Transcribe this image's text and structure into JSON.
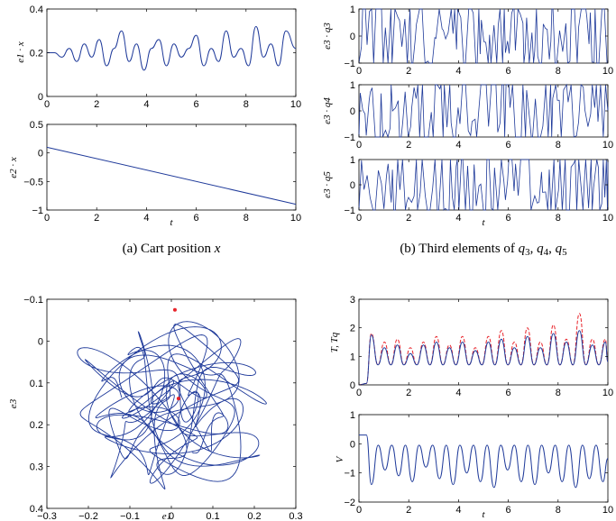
{
  "colors": {
    "series": "#1f3a9a",
    "secondary": "#e8232a",
    "axis": "#000000"
  },
  "captions": {
    "a": "(a) Cart position x",
    "b": "(b) Third elements of q3, q4, q5"
  },
  "chart_data": [
    {
      "id": "a1",
      "type": "line",
      "ylabel": "e1 · x",
      "xlabel": "",
      "xlim": [
        0,
        10
      ],
      "ylim": [
        0,
        0.4
      ],
      "xticks": [
        "0",
        "2",
        "4",
        "6",
        "8",
        "10"
      ],
      "yticks": [
        "0",
        "0.2",
        "0.4"
      ],
      "series": [
        {
          "x": [
            0,
            0.3,
            0.6,
            0.9,
            1.2,
            1.5,
            1.8,
            2.1,
            2.4,
            2.7,
            3.0,
            3.3,
            3.6,
            3.9,
            4.2,
            4.5,
            4.8,
            5.1,
            5.4,
            5.7,
            6.0,
            6.3,
            6.6,
            6.9,
            7.2,
            7.5,
            7.8,
            8.1,
            8.4,
            8.7,
            9.0,
            9.3,
            9.6,
            10
          ],
          "y": [
            0.2,
            0.2,
            0.18,
            0.22,
            0.16,
            0.24,
            0.18,
            0.26,
            0.14,
            0.22,
            0.3,
            0.16,
            0.24,
            0.12,
            0.22,
            0.26,
            0.14,
            0.24,
            0.18,
            0.22,
            0.28,
            0.14,
            0.22,
            0.16,
            0.3,
            0.18,
            0.22,
            0.14,
            0.32,
            0.18,
            0.24,
            0.14,
            0.3,
            0.22
          ]
        }
      ]
    },
    {
      "id": "a2",
      "type": "line",
      "ylabel": "e2 · x",
      "xlabel": "t",
      "xlim": [
        0,
        10
      ],
      "ylim": [
        -1,
        0.5
      ],
      "xticks": [
        "0",
        "2",
        "4",
        "6",
        "8",
        "10"
      ],
      "yticks": [
        "−1",
        "−0.5",
        "0",
        "0.5"
      ],
      "series": [
        {
          "x": [
            0,
            10
          ],
          "y": [
            0.1,
            -0.9
          ]
        }
      ]
    },
    {
      "id": "b1",
      "type": "line",
      "ylabel": "e3 · q3",
      "xlabel": "",
      "xlim": [
        0,
        10
      ],
      "ylim": [
        -1,
        1
      ],
      "xticks": [
        "0",
        "2",
        "4",
        "6",
        "8",
        "10"
      ],
      "yticks": [
        "−1",
        "0",
        "1"
      ]
    },
    {
      "id": "b2",
      "type": "line",
      "ylabel": "e3 · q4",
      "xlabel": "",
      "xlim": [
        0,
        10
      ],
      "ylim": [
        -1,
        1
      ],
      "xticks": [
        "0",
        "2",
        "4",
        "6",
        "8",
        "10"
      ],
      "yticks": [
        "−1",
        "0",
        "1"
      ]
    },
    {
      "id": "b3",
      "type": "line",
      "ylabel": "e3 · q5",
      "xlabel": "t",
      "xlim": [
        0,
        10
      ],
      "ylim": [
        -1,
        1
      ],
      "xticks": [
        "0",
        "2",
        "4",
        "6",
        "8",
        "10"
      ],
      "yticks": [
        "−1",
        "0",
        "1"
      ]
    },
    {
      "id": "c",
      "type": "line",
      "ylabel": "e3",
      "xlabel": "e1",
      "xlim": [
        -0.35,
        0.35
      ],
      "ylim": [
        -0.12,
        0.47
      ],
      "y_reversed": true,
      "xticks": [
        "−0.3",
        "−0.2",
        "−0.1",
        "0",
        "0.1",
        "0.2",
        "0.3"
      ],
      "yticks": [
        "−0.1",
        "0",
        "0.1",
        "0.2",
        "0.3",
        "0.4"
      ],
      "markers": [
        {
          "x": 0.01,
          "y": -0.09
        },
        {
          "x": 0.02,
          "y": 0.16
        }
      ]
    },
    {
      "id": "d1",
      "type": "line",
      "ylabel": "T, Tq",
      "xlabel": "",
      "xlim": [
        0,
        10
      ],
      "ylim": [
        0,
        3
      ],
      "xticks": [
        "0",
        "2",
        "4",
        "6",
        "8",
        "10"
      ],
      "yticks": [
        "0",
        "1",
        "2",
        "3"
      ],
      "peaks_T": [
        1.75,
        1.3,
        1.4,
        1.1,
        1.4,
        1.5,
        1.3,
        1.5,
        1.2,
        1.5,
        1.6,
        1.3,
        1.7,
        1.3,
        1.8,
        1.5,
        1.9,
        1.4,
        1.5
      ],
      "peaks_Tq": [
        1.8,
        1.5,
        1.6,
        1.3,
        1.5,
        1.7,
        1.4,
        1.7,
        1.3,
        1.7,
        1.9,
        1.5,
        2.0,
        1.5,
        2.1,
        1.6,
        2.5,
        1.6,
        1.6
      ]
    },
    {
      "id": "d2",
      "type": "line",
      "ylabel": "V",
      "xlabel": "t",
      "xlim": [
        0,
        10
      ],
      "ylim": [
        -2,
        1
      ],
      "xticks": [
        "0",
        "2",
        "4",
        "6",
        "8",
        "10"
      ],
      "yticks": [
        "−2",
        "−1",
        "0",
        "1"
      ],
      "troughs": [
        -1.4,
        -0.9,
        -1.1,
        -1.3,
        -0.8,
        -1.2,
        -1.4,
        -1.0,
        -1.3,
        -1.5,
        -0.9,
        -1.3,
        -1.4,
        -1.0,
        -1.3,
        -1.5,
        -1.2,
        -1.3
      ]
    }
  ]
}
